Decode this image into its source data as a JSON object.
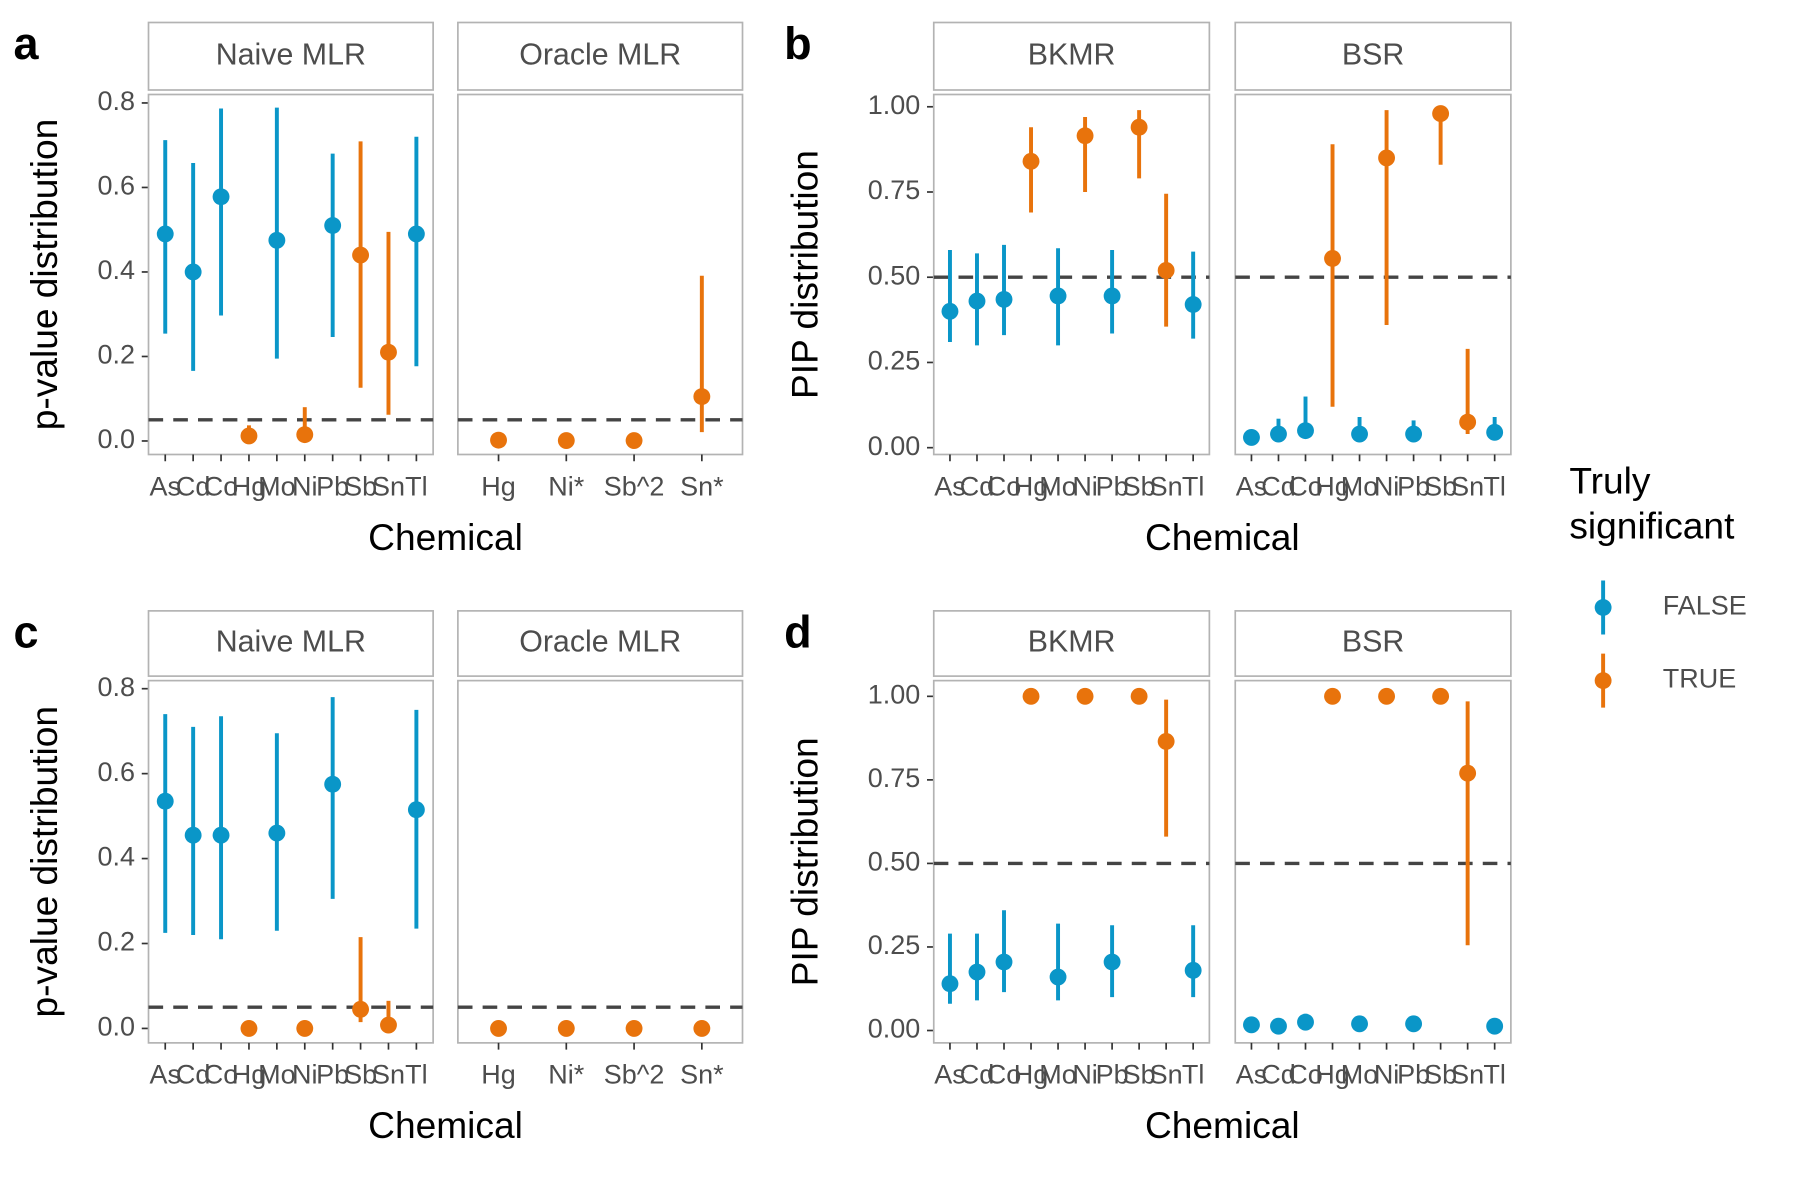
{
  "chart_data": [
    {
      "type": "pointrange",
      "panel": "a",
      "x_label": "Chemical",
      "y_label": "p-value distribution",
      "ylim": [
        -0.032,
        0.82
      ],
      "yticks": [
        {
          "value": 0,
          "label": "0.0"
        },
        0.2,
        0.4,
        0.6,
        0.8
      ],
      "hline": 0.05,
      "facets": [
        {
          "title": "Naive MLR",
          "categories": [
            "As",
            "Cd",
            "Co",
            "Hg",
            "Mo",
            "Ni",
            "Pb",
            "Sb",
            "Sn",
            "Tl"
          ],
          "series": [
            {
              "name": "FALSE",
              "color": "#0a96c8",
              "values": [
                0.49,
                0.4,
                0.578,
                null,
                0.475,
                null,
                0.51,
                null,
                null,
                0.49
              ],
              "low": [
                0.254,
                0.166,
                0.297,
                null,
                0.195,
                null,
                0.246,
                null,
                null,
                0.177
              ],
              "high": [
                0.712,
                0.658,
                0.787,
                null,
                0.789,
                null,
                0.68,
                null,
                null,
                0.72
              ]
            },
            {
              "name": "TRUE",
              "color": "#e8730c",
              "values": [
                null,
                null,
                null,
                0.012,
                null,
                0.015,
                null,
                0.44,
                0.21,
                null
              ],
              "low": [
                null,
                null,
                null,
                0.0,
                null,
                0.002,
                null,
                0.126,
                0.062,
                null
              ],
              "high": [
                null,
                null,
                null,
                0.037,
                null,
                0.08,
                null,
                0.709,
                0.495,
                null
              ]
            }
          ]
        },
        {
          "title": "Oracle MLR",
          "categories": [
            "Hg",
            "Ni*",
            "Sb^2",
            "Sn*"
          ],
          "series": [
            {
              "name": "TRUE",
              "color": "#e8730c",
              "values": [
                0.002,
                0.001,
                0.001,
                0.105
              ],
              "low": [
                null,
                null,
                null,
                0.021
              ],
              "high": [
                null,
                null,
                null,
                0.391
              ]
            }
          ]
        }
      ]
    },
    {
      "type": "pointrange",
      "panel": "b",
      "x_label": "Chemical",
      "y_label": "PIP distribution",
      "ylim": [
        -0.02,
        1.036
      ],
      "yticks": [
        {
          "value": 0,
          "label": "0.00"
        },
        0.25,
        {
          "value": 0.5,
          "label": "0.50"
        },
        0.75,
        {
          "value": 1,
          "label": "1.00"
        }
      ],
      "hline": 0.5,
      "facets": [
        {
          "title": "BKMR",
          "categories": [
            "As",
            "Cd",
            "Co",
            "Hg",
            "Mo",
            "Ni",
            "Pb",
            "Sb",
            "Sn",
            "Tl"
          ],
          "series": [
            {
              "name": "FALSE",
              "color": "#0a96c8",
              "values": [
                0.4,
                0.43,
                0.435,
                null,
                0.445,
                null,
                0.445,
                null,
                null,
                0.42
              ],
              "low": [
                0.31,
                0.3,
                0.33,
                null,
                0.3,
                null,
                0.335,
                null,
                null,
                0.32
              ],
              "high": [
                0.58,
                0.57,
                0.595,
                null,
                0.585,
                null,
                0.58,
                null,
                null,
                0.575
              ]
            },
            {
              "name": "TRUE",
              "color": "#e8730c",
              "values": [
                null,
                null,
                null,
                0.84,
                null,
                0.915,
                null,
                0.94,
                0.52,
                null
              ],
              "low": [
                null,
                null,
                null,
                0.69,
                null,
                0.75,
                null,
                0.79,
                0.355,
                null
              ],
              "high": [
                null,
                null,
                null,
                0.94,
                null,
                0.97,
                null,
                0.99,
                0.745,
                null
              ]
            }
          ]
        },
        {
          "title": "BSR",
          "categories": [
            "As",
            "Cd",
            "Co",
            "Hg",
            "Mo",
            "Ni",
            "Pb",
            "Sb",
            "Sn",
            "Tl"
          ],
          "series": [
            {
              "name": "FALSE",
              "color": "#0a96c8",
              "values": [
                0.03,
                0.04,
                0.05,
                null,
                0.04,
                null,
                0.04,
                null,
                null,
                0.045
              ],
              "low": [
                0.025,
                0.02,
                0.03,
                null,
                0.02,
                null,
                0.02,
                null,
                null,
                0.03
              ],
              "high": [
                0.04,
                0.085,
                0.15,
                null,
                0.09,
                null,
                0.08,
                null,
                null,
                0.09
              ]
            },
            {
              "name": "TRUE",
              "color": "#e8730c",
              "values": [
                null,
                null,
                null,
                0.555,
                null,
                0.85,
                null,
                0.98,
                0.075,
                null
              ],
              "low": [
                null,
                null,
                null,
                0.12,
                null,
                0.36,
                null,
                0.83,
                0.04,
                null
              ],
              "high": [
                null,
                null,
                null,
                0.89,
                null,
                0.99,
                null,
                1.0,
                0.29,
                null
              ]
            }
          ]
        }
      ]
    },
    {
      "type": "pointrange",
      "panel": "c",
      "x_label": "Chemical",
      "y_label": "p-value distribution",
      "ylim": [
        -0.034,
        0.819
      ],
      "yticks": [
        {
          "value": 0,
          "label": "0.0"
        },
        0.2,
        0.4,
        0.6,
        0.8
      ],
      "hline": 0.05,
      "facets": [
        {
          "title": "Naive MLR",
          "categories": [
            "As",
            "Cd",
            "Co",
            "Hg",
            "Mo",
            "Ni",
            "Pb",
            "Sb",
            "Sn",
            "Tl"
          ],
          "series": [
            {
              "name": "FALSE",
              "color": "#0a96c8",
              "values": [
                0.535,
                0.455,
                0.455,
                null,
                0.46,
                null,
                0.575,
                null,
                null,
                0.515
              ],
              "low": [
                0.225,
                0.22,
                0.21,
                null,
                0.23,
                null,
                0.305,
                null,
                null,
                0.235
              ],
              "high": [
                0.74,
                0.71,
                0.735,
                null,
                0.695,
                null,
                0.78,
                null,
                null,
                0.75
              ]
            },
            {
              "name": "TRUE",
              "color": "#e8730c",
              "values": [
                null,
                null,
                null,
                0,
                null,
                0,
                null,
                0.045,
                0.008,
                null
              ],
              "low": [
                null,
                null,
                null,
                null,
                null,
                null,
                null,
                0.015,
                0.0,
                null
              ],
              "high": [
                null,
                null,
                null,
                null,
                null,
                null,
                null,
                0.215,
                0.065,
                null
              ]
            }
          ]
        },
        {
          "title": "Oracle MLR",
          "categories": [
            "Hg",
            "Ni*",
            "Sb^2",
            "Sn*"
          ],
          "series": [
            {
              "name": "TRUE",
              "color": "#e8730c",
              "values": [
                0,
                0,
                0,
                0
              ],
              "low": [
                null,
                null,
                null,
                null
              ],
              "high": [
                null,
                null,
                null,
                null
              ]
            }
          ]
        }
      ]
    },
    {
      "type": "pointrange",
      "panel": "d",
      "x_label": "Chemical",
      "y_label": "PIP distribution",
      "ylim": [
        -0.037,
        1.047
      ],
      "yticks": [
        {
          "value": 0,
          "label": "0.00"
        },
        0.25,
        {
          "value": 0.5,
          "label": "0.50"
        },
        0.75,
        {
          "value": 1,
          "label": "1.00"
        }
      ],
      "hline": 0.5,
      "facets": [
        {
          "title": "BKMR",
          "categories": [
            "As",
            "Cd",
            "Co",
            "Hg",
            "Mo",
            "Ni",
            "Pb",
            "Sb",
            "Sn",
            "Tl"
          ],
          "series": [
            {
              "name": "FALSE",
              "color": "#0a96c8",
              "values": [
                0.14,
                0.175,
                0.205,
                null,
                0.16,
                null,
                0.205,
                null,
                null,
                0.18
              ],
              "low": [
                0.08,
                0.09,
                0.115,
                null,
                0.09,
                null,
                0.1,
                null,
                null,
                0.1
              ],
              "high": [
                0.29,
                0.29,
                0.36,
                null,
                0.32,
                null,
                0.315,
                null,
                null,
                0.315
              ]
            },
            {
              "name": "TRUE",
              "color": "#e8730c",
              "values": [
                null,
                null,
                null,
                1,
                null,
                1,
                null,
                1,
                0.865,
                null
              ],
              "low": [
                null,
                null,
                null,
                null,
                null,
                null,
                null,
                null,
                0.58,
                null
              ],
              "high": [
                null,
                null,
                null,
                null,
                null,
                null,
                null,
                null,
                0.99,
                null
              ]
            }
          ]
        },
        {
          "title": "BSR",
          "categories": [
            "As",
            "Cd",
            "Co",
            "Hg",
            "Mo",
            "Ni",
            "Pb",
            "Sb",
            "Sn",
            "Tl"
          ],
          "series": [
            {
              "name": "FALSE",
              "color": "#0a96c8",
              "values": [
                0.017,
                0.013,
                0.025,
                null,
                0.02,
                null,
                0.02,
                null,
                null,
                0.013
              ],
              "low": [
                null,
                null,
                0.01,
                null,
                null,
                null,
                null,
                null,
                null,
                null
              ],
              "high": [
                null,
                null,
                0.05,
                null,
                null,
                null,
                null,
                null,
                null,
                null
              ]
            },
            {
              "name": "TRUE",
              "color": "#e8730c",
              "values": [
                null,
                null,
                null,
                1,
                null,
                1,
                null,
                1,
                0.77,
                null
              ],
              "low": [
                null,
                null,
                null,
                null,
                null,
                null,
                null,
                null,
                0.255,
                null
              ],
              "high": [
                null,
                null,
                null,
                null,
                null,
                null,
                null,
                null,
                0.985,
                null
              ]
            }
          ]
        }
      ]
    }
  ],
  "legend": {
    "title": "Truly significant",
    "position": "right"
  }
}
